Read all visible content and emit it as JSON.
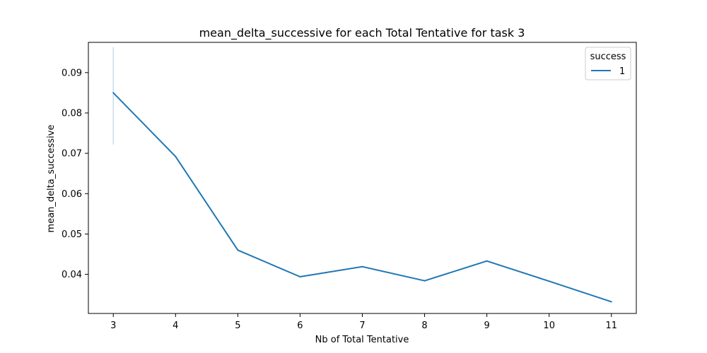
{
  "chart_data": {
    "type": "line",
    "title": "mean_delta_successive for each Total Tentative for task 3",
    "xlabel": "Nb of Total Tentative",
    "ylabel": "mean_delta_successive",
    "x": [
      3,
      4,
      5,
      6,
      7,
      8,
      9,
      10,
      11
    ],
    "xticks": [
      "3",
      "4",
      "5",
      "6",
      "7",
      "8",
      "9",
      "10",
      "11"
    ],
    "yticks": [
      "0.04",
      "0.05",
      "0.06",
      "0.07",
      "0.08",
      "0.09"
    ],
    "ytick_values": [
      0.04,
      0.05,
      0.06,
      0.07,
      0.08,
      0.09
    ],
    "xlim": [
      2.6,
      11.4
    ],
    "ylim": [
      0.0303,
      0.0975
    ],
    "series": [
      {
        "name": "1",
        "values": [
          0.085,
          0.0692,
          0.046,
          0.0394,
          0.0419,
          0.0384,
          0.0433,
          0.0383,
          0.0332
        ],
        "error_band": {
          "x": 3,
          "low": 0.0722,
          "high": 0.0963
        }
      }
    ],
    "legend": {
      "title": "success",
      "position": "top-right"
    },
    "grid": false,
    "colors": {
      "line": "#1f77b4",
      "band": "#c6dcef",
      "axis": "#000000"
    }
  }
}
